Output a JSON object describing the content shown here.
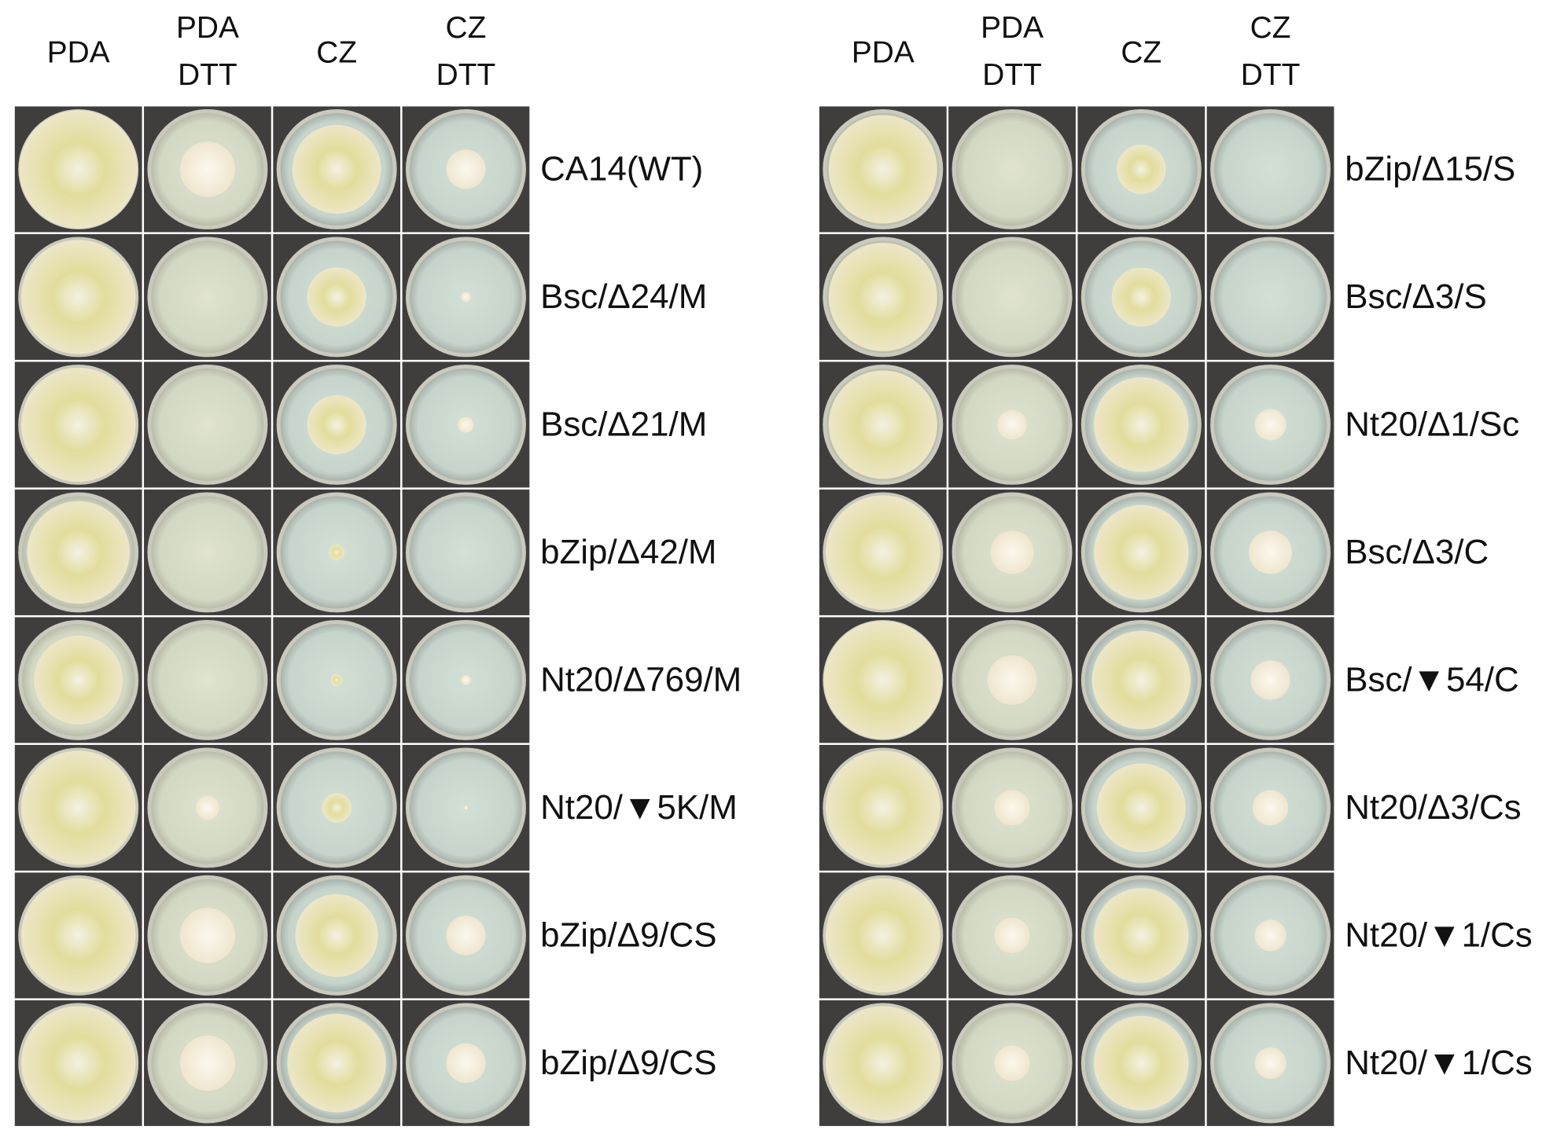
{
  "panels": [
    {
      "columns": [
        [
          "PDA"
        ],
        [
          "PDA",
          "DTT"
        ],
        [
          "CZ"
        ],
        [
          "CZ",
          "DTT"
        ]
      ],
      "rows": [
        "CA14(WT)",
        "Bsc/Δ24/M",
        "Bsc/Δ21/M",
        "bZip/Δ42/M",
        "Nt20/Δ769/M",
        "Nt20/▼5K/M",
        "bZip/Δ9/CS",
        "bZip/Δ9/CS"
      ]
    },
    {
      "columns": [
        [
          "PDA"
        ],
        [
          "PDA",
          "DTT"
        ],
        [
          "CZ"
        ],
        [
          "CZ",
          "DTT"
        ]
      ],
      "rows": [
        "bZip/Δ15/S",
        "Bsc/Δ3/S",
        "Nt20/Δ1/Sc",
        "Bsc/Δ3/C",
        "Bsc/▼54/C",
        "Nt20/Δ3/Cs",
        "Nt20/▼1/Cs",
        "Nt20/▼1/Cs"
      ]
    }
  ]
}
